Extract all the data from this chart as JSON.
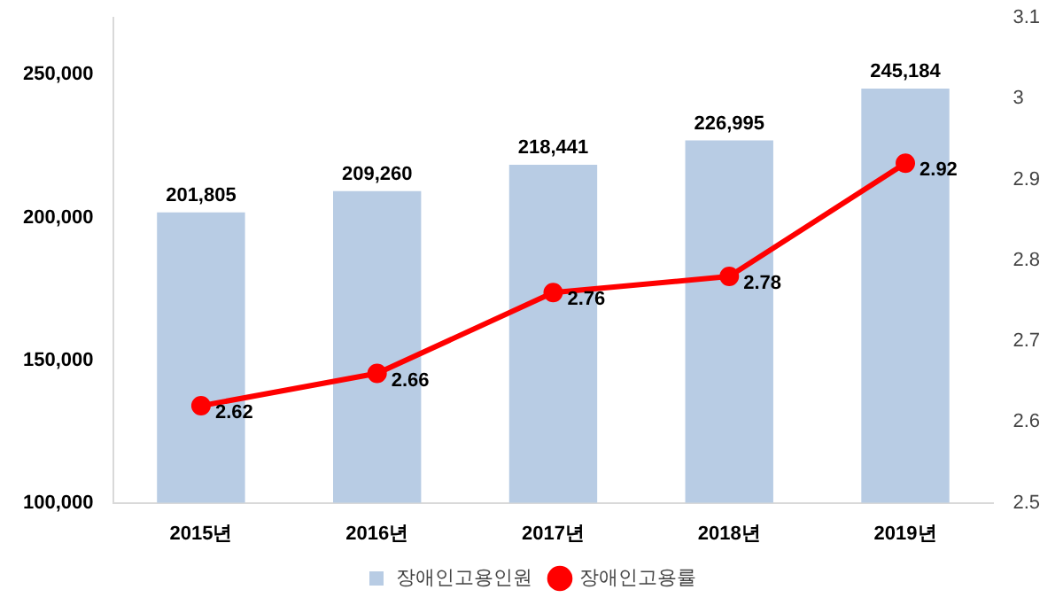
{
  "chart_data": {
    "type": "bar",
    "categories": [
      "2015년",
      "2016년",
      "2017년",
      "2018년",
      "2019년"
    ],
    "series": [
      {
        "name": "장애인고용인원",
        "color": "#b8cce4",
        "values": [
          201805,
          209260,
          218441,
          226995,
          245184
        ],
        "value_labels": [
          "201,805",
          "209,260",
          "218,441",
          "226,995",
          "245,184"
        ]
      },
      {
        "name": "장애인고용률",
        "type": "line",
        "axis": "y2",
        "color": "#ff0000",
        "marker": "circle",
        "values": [
          2.62,
          2.66,
          2.76,
          2.78,
          2.92
        ],
        "value_labels": [
          "2.62",
          "2.66",
          "2.76",
          "2.78",
          "2.92"
        ]
      }
    ],
    "ylim": [
      100000,
      270000
    ],
    "yticks": [
      {
        "value": 100000,
        "label": "100,000"
      },
      {
        "value": 150000,
        "label": "150,000"
      },
      {
        "value": 200000,
        "label": "200,000"
      },
      {
        "value": 250000,
        "label": "250,000"
      }
    ],
    "y2lim": [
      2.5,
      3.1
    ],
    "y2ticks": [
      2.5,
      2.6,
      2.7,
      2.8,
      2.9,
      3,
      3.1
    ],
    "grid": false,
    "legend": "bottom"
  }
}
